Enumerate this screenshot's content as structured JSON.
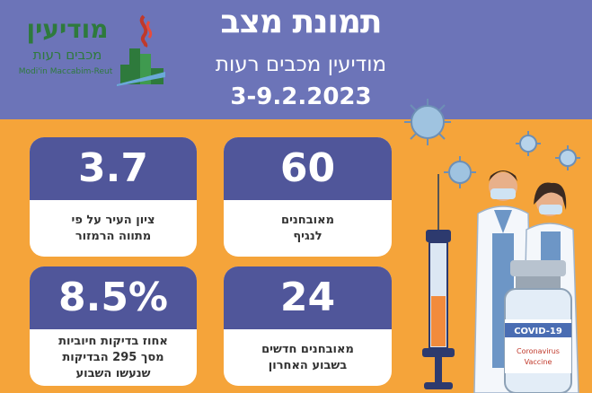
{
  "header": {
    "title": "תמונת מצב",
    "subtitle": "מודיעין מכבים רעות",
    "dates": "3-9.2.2023"
  },
  "logo": {
    "name_he": "מודיעין",
    "sub_he": "מכבים רעות",
    "name_en": "Modi'in Maccabim-Reut"
  },
  "cards": {
    "city_score": {
      "value": "3.7",
      "line1": "ציון העיר על פי",
      "line2": "מתווה הרמזור"
    },
    "diagnosed": {
      "value": "60",
      "line1": "מאובחנים",
      "line2": "לנגיף"
    },
    "positive_rate": {
      "value": "8.5%",
      "line1": "אחוז בדיקות חיוביות",
      "line2": "מסך 295 הבדיקות",
      "line3": "שנעשו השבוע"
    },
    "new_diagnosed": {
      "value": "24",
      "line1": "מאובחנים חדשים",
      "line2": "בשבוע האחרון"
    }
  },
  "illustration": {
    "vial_label": "COVID-19",
    "vial_text1": "Coronavirus",
    "vial_text2": "Vaccine"
  },
  "colors": {
    "header_bg": "#6c74b8",
    "page_bg": "#f5a43a",
    "card_value_bg": "#50569a",
    "logo_green": "#2e7a3c"
  }
}
